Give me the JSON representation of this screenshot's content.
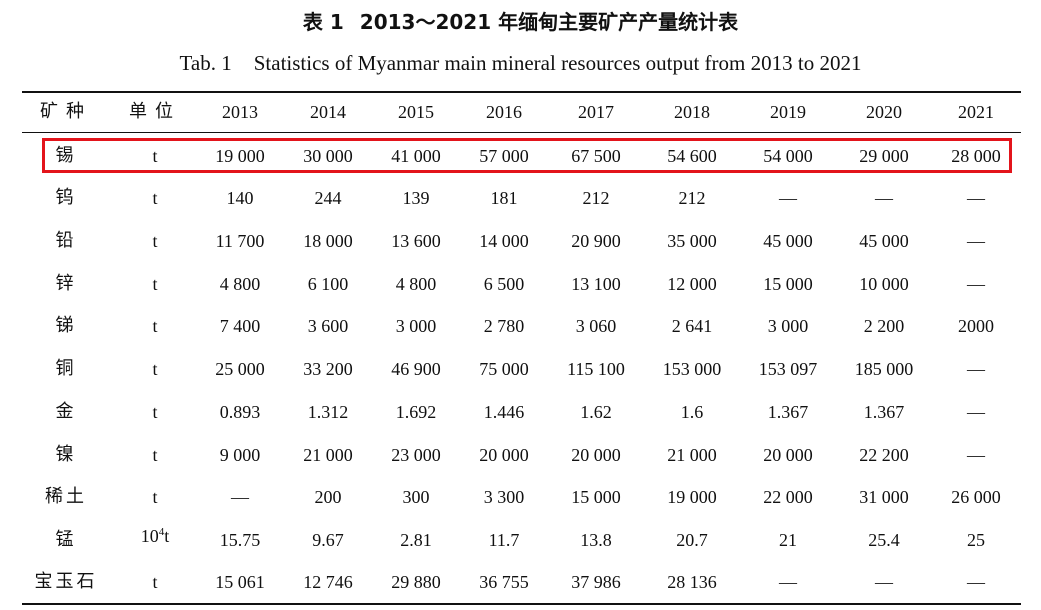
{
  "title_cn": {
    "label": "表 1",
    "text": "2013～2021 年缅甸主要矿产产量统计表"
  },
  "title_en": {
    "label": "Tab. 1",
    "text": "Statistics of Myanmar main mineral resources output from 2013 to 2021"
  },
  "header": {
    "mineral": "矿种",
    "unit": "单位",
    "years": [
      "2013",
      "2014",
      "2015",
      "2016",
      "2017",
      "2018",
      "2019",
      "2020",
      "2021"
    ]
  },
  "rows": [
    {
      "mineral": "锡",
      "unit": "t",
      "values": [
        "19 000",
        "30 000",
        "41 000",
        "57 000",
        "67 500",
        "54 600",
        "54 000",
        "29 000",
        "28 000"
      ],
      "highlighted": true
    },
    {
      "mineral": "钨",
      "unit": "t",
      "values": [
        "140",
        "244",
        "139",
        "181",
        "212",
        "212",
        "—",
        "—",
        "—"
      ]
    },
    {
      "mineral": "铅",
      "unit": "t",
      "values": [
        "11 700",
        "18 000",
        "13 600",
        "14 000",
        "20 900",
        "35 000",
        "45 000",
        "45 000",
        "—"
      ]
    },
    {
      "mineral": "锌",
      "unit": "t",
      "values": [
        "4 800",
        "6 100",
        "4 800",
        "6 500",
        "13 100",
        "12 000",
        "15 000",
        "10 000",
        "—"
      ]
    },
    {
      "mineral": "锑",
      "unit": "t",
      "values": [
        "7 400",
        "3 600",
        "3 000",
        "2 780",
        "3 060",
        "2 641",
        "3 000",
        "2 200",
        "2000"
      ]
    },
    {
      "mineral": "铜",
      "unit": "t",
      "values": [
        "25 000",
        "33 200",
        "46 900",
        "75 000",
        "115 100",
        "153 000",
        "153 097",
        "185 000",
        "—"
      ]
    },
    {
      "mineral": "金",
      "unit": "t",
      "values": [
        "0.893",
        "1.312",
        "1.692",
        "1.446",
        "1.62",
        "1.6",
        "1.367",
        "1.367",
        "—"
      ]
    },
    {
      "mineral": "镍",
      "unit": "t",
      "values": [
        "9 000",
        "21 000",
        "23 000",
        "20 000",
        "20 000",
        "21 000",
        "20 000",
        "22 200",
        "—"
      ]
    },
    {
      "mineral": "稀土",
      "unit": "t",
      "values": [
        "—",
        "200",
        "300",
        "3 300",
        "15 000",
        "19 000",
        "22 000",
        "31 000",
        "26 000"
      ]
    },
    {
      "mineral": "锰",
      "unit_base": "10",
      "unit_exp": "4",
      "unit_rest": "t",
      "values": [
        "15.75",
        "9.67",
        "2.81",
        "11.7",
        "13.8",
        "20.7",
        "21",
        "25.4",
        "25"
      ]
    },
    {
      "mineral": "宝玉石",
      "unit": "t",
      "values": [
        "15 061",
        "12 746",
        "29 880",
        "36 755",
        "37 986",
        "28 136",
        "—",
        "—",
        "—"
      ]
    }
  ],
  "highlight_color": "#e3141b"
}
